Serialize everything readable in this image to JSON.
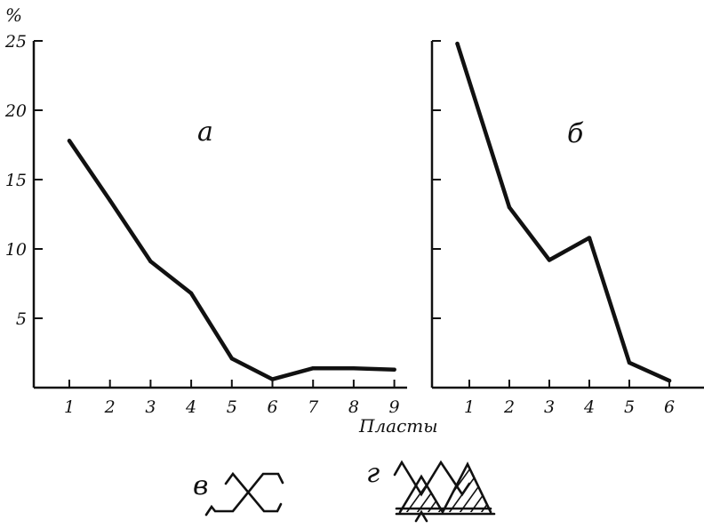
{
  "chart_data": [
    {
      "type": "line",
      "panel_label": "а",
      "ylabel": "%",
      "xlabel": "",
      "ylim": [
        0,
        25
      ],
      "yticks": [
        5,
        10,
        15,
        20,
        25
      ],
      "categories": [
        "1",
        "2",
        "3",
        "4",
        "5",
        "6",
        "7",
        "8",
        "9"
      ],
      "x": [
        1,
        2,
        3,
        4,
        5,
        6,
        7,
        8,
        9
      ],
      "values": [
        17.8,
        13.5,
        9.1,
        6.8,
        2.1,
        0.6,
        1.4,
        1.4,
        1.3
      ],
      "grid": false
    },
    {
      "type": "line",
      "panel_label": "б",
      "xlabel": "",
      "ylim": [
        0,
        25
      ],
      "yticks": [
        5,
        10,
        15,
        20,
        25
      ],
      "categories": [
        "1",
        "2",
        "3",
        "4",
        "5",
        "6"
      ],
      "x": [
        0.7,
        2,
        3,
        4,
        5,
        6
      ],
      "values": [
        24.8,
        13,
        9.2,
        10.8,
        1.8,
        0.5
      ],
      "grid": false
    }
  ],
  "shared_xlabel": "Пласты",
  "ornaments": [
    {
      "label": "в",
      "icon": "crossed-zigzag-ornament-icon"
    },
    {
      "label": "г",
      "icon": "hatched-triangle-ornament-icon"
    }
  ]
}
